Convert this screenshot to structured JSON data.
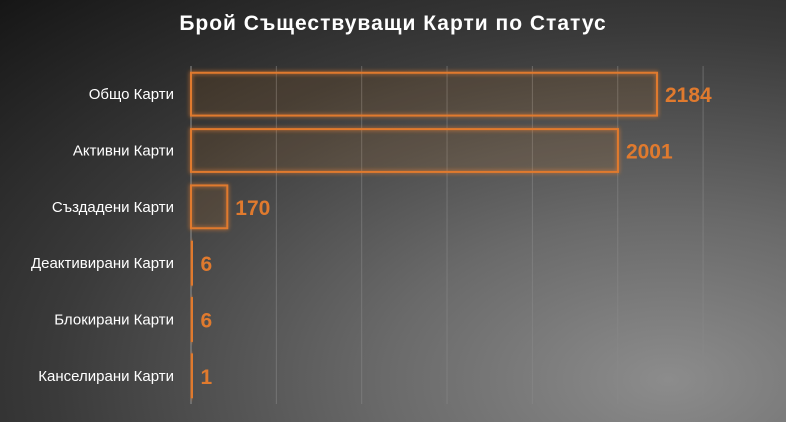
{
  "chart_data": {
    "type": "bar",
    "orientation": "horizontal",
    "title": "Брой Съществуващи Карти по Статус",
    "categories": [
      "Общо Карти",
      "Активни Карти",
      "Създадени Карти",
      "Деактивирани Карти",
      "Блокирани Карти",
      "Канселирани Карти"
    ],
    "values": [
      2184,
      2001,
      170,
      6,
      6,
      1
    ],
    "xlim": [
      0,
      2400
    ],
    "grid": true,
    "bar_color": "#e07a2e",
    "label_color": "#e07a2e"
  }
}
